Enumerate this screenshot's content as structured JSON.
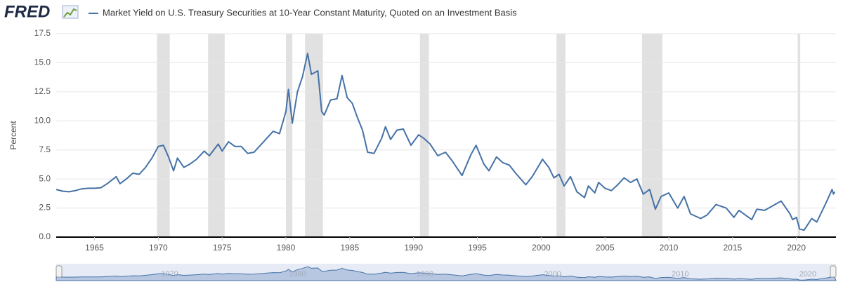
{
  "chart_data": {
    "type": "line",
    "logo": "FRED",
    "y_label": "Percent",
    "x": [
      1962.0,
      1962.5,
      1963.0,
      1963.5,
      1964.0,
      1964.5,
      1965.0,
      1965.5,
      1966.0,
      1966.7,
      1967.0,
      1967.5,
      1968.0,
      1968.5,
      1969.0,
      1969.5,
      1970.0,
      1970.4,
      1970.8,
      1971.2,
      1971.5,
      1972.0,
      1972.5,
      1973.0,
      1973.6,
      1974.0,
      1974.7,
      1975.0,
      1975.5,
      1976.0,
      1976.5,
      1977.0,
      1977.5,
      1978.0,
      1978.5,
      1979.0,
      1979.5,
      1980.0,
      1980.2,
      1980.5,
      1980.9,
      1981.3,
      1981.7,
      1982.0,
      1982.5,
      1982.8,
      1983.0,
      1983.5,
      1984.0,
      1984.4,
      1984.8,
      1985.2,
      1985.6,
      1986.0,
      1986.4,
      1986.9,
      1987.5,
      1987.8,
      1988.2,
      1988.7,
      1989.2,
      1989.8,
      1990.4,
      1990.8,
      1991.3,
      1991.9,
      1992.5,
      1993.0,
      1993.8,
      1994.5,
      1994.9,
      1995.5,
      1995.9,
      1996.5,
      1997.0,
      1997.5,
      1998.0,
      1998.8,
      1999.3,
      1999.9,
      2000.1,
      2000.6,
      2001.0,
      2001.4,
      2001.8,
      2002.3,
      2002.8,
      2003.4,
      2003.7,
      2004.2,
      2004.5,
      2005.0,
      2005.5,
      2006.0,
      2006.5,
      2007.0,
      2007.5,
      2008.0,
      2008.5,
      2008.95,
      2009.4,
      2010.0,
      2010.7,
      2011.2,
      2011.7,
      2012.5,
      2013.0,
      2013.7,
      2014.5,
      2015.1,
      2015.5,
      2016.5,
      2016.9,
      2017.5,
      2018.0,
      2018.8,
      2019.5,
      2019.7,
      2020.0,
      2020.25,
      2020.6,
      2021.2,
      2021.6,
      2022.3,
      2022.8,
      2022.9,
      2023.0
    ],
    "series": [
      {
        "name": "Market Yield on U.S. Treasury Securities at 10-Year Constant Maturity, Quoted on an Investment Basis",
        "color": "#4572a7",
        "values": [
          4.1,
          3.95,
          3.9,
          4.0,
          4.15,
          4.2,
          4.2,
          4.25,
          4.6,
          5.2,
          4.6,
          5.0,
          5.5,
          5.4,
          6.0,
          6.8,
          7.8,
          7.9,
          6.9,
          5.7,
          6.8,
          6.0,
          6.3,
          6.7,
          7.4,
          7.0,
          8.0,
          7.4,
          8.2,
          7.8,
          7.8,
          7.2,
          7.3,
          7.9,
          8.5,
          9.1,
          8.9,
          10.8,
          12.7,
          9.8,
          12.5,
          13.8,
          15.8,
          14.0,
          14.3,
          10.8,
          10.5,
          11.8,
          11.9,
          13.9,
          12.0,
          11.5,
          10.3,
          9.2,
          7.3,
          7.2,
          8.5,
          9.5,
          8.4,
          9.2,
          9.3,
          7.9,
          8.8,
          8.5,
          8.0,
          7.0,
          7.3,
          6.6,
          5.3,
          7.1,
          7.9,
          6.3,
          5.7,
          6.9,
          6.4,
          6.2,
          5.5,
          4.5,
          5.2,
          6.3,
          6.7,
          6.0,
          5.1,
          5.4,
          4.4,
          5.2,
          3.9,
          3.4,
          4.4,
          3.8,
          4.7,
          4.2,
          4.0,
          4.5,
          5.1,
          4.7,
          5.0,
          3.7,
          4.1,
          2.4,
          3.5,
          3.8,
          2.5,
          3.5,
          2.0,
          1.6,
          1.9,
          2.8,
          2.5,
          1.7,
          2.3,
          1.5,
          2.4,
          2.3,
          2.6,
          3.1,
          2.0,
          1.5,
          1.7,
          0.7,
          0.6,
          1.6,
          1.3,
          2.9,
          4.1,
          3.7,
          3.9
        ]
      }
    ],
    "recessions": [
      [
        1969.9,
        1970.9
      ],
      [
        1973.9,
        1975.2
      ],
      [
        1980.0,
        1980.5
      ],
      [
        1981.5,
        1982.9
      ],
      [
        1990.5,
        1991.2
      ],
      [
        2001.2,
        2001.9
      ],
      [
        2007.9,
        2009.5
      ],
      [
        2020.1,
        2020.3
      ]
    ],
    "recession_color": "#e1e1e1",
    "xlim": [
      1962.0,
      2023.1
    ],
    "xticks": [
      1965,
      1970,
      1975,
      1980,
      1985,
      1990,
      1995,
      2000,
      2005,
      2010,
      2015,
      2020
    ],
    "ylim": [
      0,
      17.5
    ],
    "yticks": [
      {
        "value": 0,
        "label": "0.0"
      },
      2.5,
      {
        "value": 5,
        "label": "5.0"
      },
      7.5,
      {
        "value": 10,
        "label": "10.0"
      },
      12.5,
      {
        "value": 15,
        "label": "15.0"
      },
      17.5
    ],
    "grid": true,
    "navigator_ticks": [
      1970,
      1980,
      1990,
      2000,
      2010,
      2020
    ]
  }
}
